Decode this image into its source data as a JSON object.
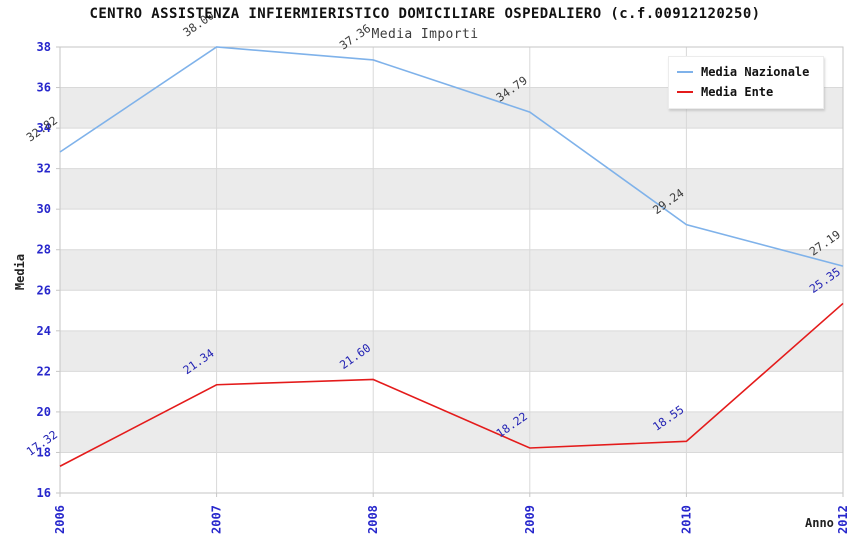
{
  "chart_data": {
    "type": "line",
    "title": "CENTRO ASSISTENZA INFIERMIERISTICO DOMICILIARE OSPEDALIERO (c.f.00912120250)",
    "subtitle": "Media Importi",
    "xlabel": "Anno",
    "ylabel": "Media",
    "categories": [
      "2006",
      "2007",
      "2008",
      "2009",
      "2010",
      "2012"
    ],
    "series": [
      {
        "name": "Media Nazionale",
        "values": [
          32.82,
          38.0,
          37.36,
          34.79,
          29.24,
          27.19
        ],
        "color": "#7fb2ea",
        "label_color": "#3b3b3b"
      },
      {
        "name": "Media Ente",
        "values": [
          17.32,
          21.34,
          21.6,
          18.22,
          18.55,
          25.35
        ],
        "color": "#e41b1b",
        "label_color": "#2424b4"
      }
    ],
    "ylim": [
      16,
      38
    ],
    "ytick_step": 2,
    "grid": true,
    "legend_position": "top-right",
    "band_colors": [
      "#ffffff",
      "#ebebeb"
    ],
    "gridline_color": "#d9d9d9",
    "axis_border_color": "#c6c6c6",
    "tick_label_color": "#2727cc"
  }
}
